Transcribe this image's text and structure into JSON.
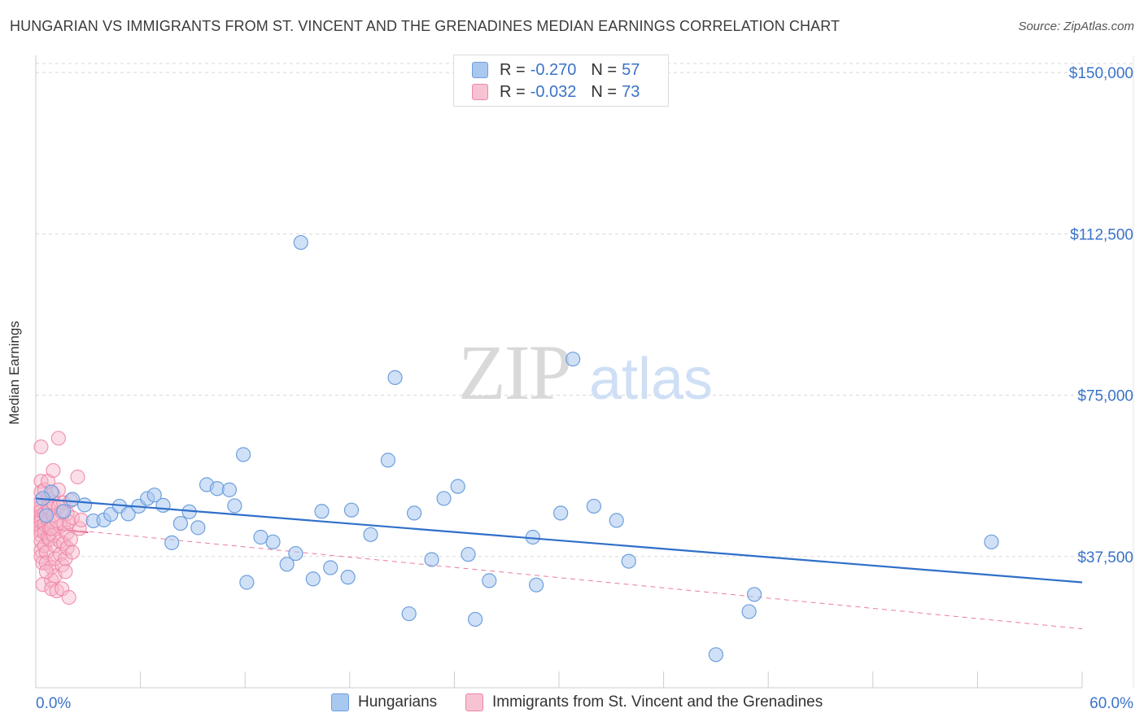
{
  "title": "HUNGARIAN VS IMMIGRANTS FROM ST. VINCENT AND THE GRENADINES MEDIAN EARNINGS CORRELATION CHART",
  "source": "Source: ZipAtlas.com",
  "watermark": {
    "part1": "ZIP",
    "part2": "atlas"
  },
  "legend": {
    "rows": [
      {
        "r_label": "R =",
        "r_value": "-0.270",
        "n_label": "N =",
        "n_value": "57"
      },
      {
        "r_label": "R =",
        "r_value": "-0.032",
        "n_label": "N =",
        "n_value": "73"
      }
    ]
  },
  "bottom_legend": {
    "series1": "Hungarians",
    "series2": "Immigrants from St. Vincent and the Grenadines"
  },
  "colors": {
    "blue_fill": "#a9c8f0",
    "blue_stroke": "#6d9fdd",
    "blue_line": "#2f6fc9",
    "pink_fill": "#f7b5c9",
    "pink_stroke": "#ee86a7",
    "pink_line": "#e75a89",
    "axis_text": "#3a73c8"
  },
  "chart_data": {
    "type": "scatter",
    "title": "HUNGARIAN VS IMMIGRANTS FROM ST. VINCENT AND THE GRENADINES MEDIAN EARNINGS CORRELATION CHART",
    "xlabel": "",
    "ylabel": "Median Earnings",
    "xlim": [
      0,
      60
    ],
    "ylim": [
      7000,
      154000
    ],
    "x_tick_labels": [
      "0.0%",
      "60.0%"
    ],
    "y_ticks": [
      {
        "value": 37500,
        "label": "$37,500"
      },
      {
        "value": 75000,
        "label": "$75,000"
      },
      {
        "value": 112500,
        "label": "$112,500"
      },
      {
        "value": 150000,
        "label": "$150,000"
      }
    ],
    "grid": true,
    "series": [
      {
        "name": "Hungarians",
        "r": -0.27,
        "n": 57,
        "trend": {
          "x": [
            0,
            60
          ],
          "y": [
            51000,
            31500
          ],
          "style": "solid"
        },
        "points": [
          [
            0.6,
            47000
          ],
          [
            0.9,
            52500
          ],
          [
            1.6,
            48000
          ],
          [
            2.1,
            50800
          ],
          [
            2.8,
            49500
          ],
          [
            3.3,
            45800
          ],
          [
            3.9,
            46000
          ],
          [
            4.3,
            47300
          ],
          [
            4.8,
            49200
          ],
          [
            5.3,
            47400
          ],
          [
            5.9,
            49200
          ],
          [
            6.4,
            51000
          ],
          [
            6.8,
            51800
          ],
          [
            7.3,
            49400
          ],
          [
            7.8,
            40700
          ],
          [
            8.3,
            45200
          ],
          [
            8.8,
            47900
          ],
          [
            9.3,
            44200
          ],
          [
            9.8,
            54200
          ],
          [
            10.4,
            53300
          ],
          [
            11.1,
            53000
          ],
          [
            11.4,
            49300
          ],
          [
            11.9,
            61200
          ],
          [
            12.1,
            31500
          ],
          [
            12.9,
            42000
          ],
          [
            13.6,
            40900
          ],
          [
            14.4,
            35700
          ],
          [
            14.9,
            38200
          ],
          [
            15.2,
            110500
          ],
          [
            15.9,
            32300
          ],
          [
            16.4,
            48000
          ],
          [
            16.9,
            34900
          ],
          [
            17.9,
            32700
          ],
          [
            18.1,
            48300
          ],
          [
            19.2,
            42600
          ],
          [
            20.2,
            59900
          ],
          [
            20.6,
            79100
          ],
          [
            21.4,
            24200
          ],
          [
            21.7,
            47600
          ],
          [
            22.7,
            36800
          ],
          [
            23.4,
            51000
          ],
          [
            24.2,
            53800
          ],
          [
            24.8,
            38000
          ],
          [
            25.2,
            22900
          ],
          [
            26.0,
            31900
          ],
          [
            28.5,
            42000
          ],
          [
            28.7,
            30900
          ],
          [
            30.1,
            47600
          ],
          [
            30.8,
            83400
          ],
          [
            32.0,
            49200
          ],
          [
            33.3,
            45900
          ],
          [
            34.0,
            36400
          ],
          [
            39.0,
            14700
          ],
          [
            40.9,
            24700
          ],
          [
            41.2,
            28700
          ],
          [
            54.8,
            40900
          ],
          [
            0.4,
            51000
          ]
        ]
      },
      {
        "name": "Immigrants from St. Vincent and the Grenadines",
        "r": -0.032,
        "n": 73,
        "trend": {
          "x": [
            0,
            60
          ],
          "y": [
            44500,
            20700
          ],
          "style": "dashed"
        },
        "trend_solid": {
          "x": [
            0,
            3.0
          ],
          "y": [
            44300,
            43100
          ]
        },
        "points": [
          [
            0.3,
            63000
          ],
          [
            0.3,
            55000
          ],
          [
            0.3,
            52500
          ],
          [
            0.3,
            50500
          ],
          [
            0.3,
            49000
          ],
          [
            0.3,
            48000
          ],
          [
            0.3,
            47000
          ],
          [
            0.3,
            46200
          ],
          [
            0.3,
            45500
          ],
          [
            0.3,
            44500
          ],
          [
            0.3,
            43500
          ],
          [
            0.3,
            42500
          ],
          [
            0.3,
            41000
          ],
          [
            0.3,
            39000
          ],
          [
            0.3,
            37500
          ],
          [
            0.4,
            36000
          ],
          [
            0.4,
            31000
          ],
          [
            0.5,
            53000
          ],
          [
            0.5,
            47500
          ],
          [
            0.5,
            45000
          ],
          [
            0.5,
            43000
          ],
          [
            0.5,
            40000
          ],
          [
            0.6,
            38500
          ],
          [
            0.6,
            36000
          ],
          [
            0.7,
            55000
          ],
          [
            0.7,
            51000
          ],
          [
            0.7,
            49000
          ],
          [
            0.7,
            46000
          ],
          [
            0.7,
            42000
          ],
          [
            0.8,
            48500
          ],
          [
            0.8,
            44000
          ],
          [
            0.8,
            41500
          ],
          [
            0.9,
            35000
          ],
          [
            0.9,
            32000
          ],
          [
            0.9,
            30000
          ],
          [
            1.0,
            57500
          ],
          [
            1.0,
            52000
          ],
          [
            1.0,
            50000
          ],
          [
            1.0,
            47000
          ],
          [
            1.0,
            42500
          ],
          [
            1.1,
            40000
          ],
          [
            1.1,
            37000
          ],
          [
            1.1,
            33000
          ],
          [
            1.2,
            29500
          ],
          [
            1.3,
            65000
          ],
          [
            1.3,
            53000
          ],
          [
            1.3,
            49000
          ],
          [
            1.4,
            44500
          ],
          [
            1.4,
            41000
          ],
          [
            1.4,
            38000
          ],
          [
            1.5,
            35500
          ],
          [
            1.5,
            30000
          ],
          [
            1.6,
            50000
          ],
          [
            1.6,
            45000
          ],
          [
            1.6,
            40500
          ],
          [
            1.7,
            37000
          ],
          [
            1.7,
            34000
          ],
          [
            1.8,
            47500
          ],
          [
            1.8,
            43000
          ],
          [
            1.8,
            39500
          ],
          [
            1.9,
            45500
          ],
          [
            1.9,
            28000
          ],
          [
            2.0,
            41500
          ],
          [
            2.0,
            50500
          ],
          [
            2.1,
            46500
          ],
          [
            2.1,
            38500
          ],
          [
            2.4,
            56000
          ],
          [
            2.5,
            44000
          ],
          [
            2.6,
            46000
          ],
          [
            0.6,
            34000
          ],
          [
            0.9,
            44000
          ],
          [
            1.2,
            45800
          ],
          [
            1.5,
            47800
          ]
        ]
      }
    ]
  }
}
